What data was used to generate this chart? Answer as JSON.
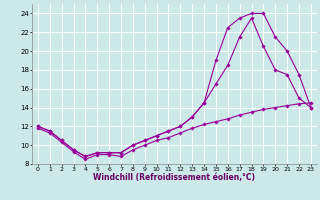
{
  "xlabel": "Windchill (Refroidissement éolien,°C)",
  "bg_color": "#cce8e8",
  "grid_color": "#b0d0d0",
  "line_color": "#990099",
  "xlim": [
    -0.5,
    23.5
  ],
  "ylim": [
    8,
    25
  ],
  "xticks": [
    0,
    1,
    2,
    3,
    4,
    5,
    6,
    7,
    8,
    9,
    10,
    11,
    12,
    13,
    14,
    15,
    16,
    17,
    18,
    19,
    20,
    21,
    22,
    23
  ],
  "yticks": [
    8,
    10,
    12,
    14,
    16,
    18,
    20,
    22,
    24
  ],
  "line1_x": [
    0,
    1,
    2,
    3,
    4,
    5,
    6,
    7,
    8,
    9,
    10,
    11,
    12,
    13,
    14,
    15,
    16,
    17,
    18,
    19,
    20,
    21,
    22,
    23
  ],
  "line1_y": [
    12.0,
    11.5,
    10.5,
    9.5,
    8.8,
    9.2,
    9.2,
    9.2,
    10.0,
    10.5,
    11.0,
    11.5,
    12.0,
    13.0,
    14.5,
    19.0,
    22.5,
    23.5,
    24.0,
    24.0,
    21.5,
    20.0,
    17.5,
    14.0
  ],
  "line2_x": [
    0,
    1,
    2,
    3,
    4,
    5,
    6,
    7,
    8,
    9,
    10,
    11,
    12,
    13,
    14,
    15,
    16,
    17,
    18,
    19,
    20,
    21,
    22,
    23
  ],
  "line2_y": [
    12.0,
    11.5,
    10.5,
    9.5,
    8.8,
    9.2,
    9.2,
    9.2,
    10.0,
    10.5,
    11.0,
    11.5,
    12.0,
    13.0,
    14.5,
    16.5,
    18.5,
    21.5,
    23.5,
    20.5,
    18.0,
    17.5,
    15.0,
    14.0
  ],
  "line3_x": [
    0,
    1,
    2,
    3,
    4,
    5,
    6,
    7,
    8,
    9,
    10,
    11,
    12,
    13,
    14,
    15,
    16,
    17,
    18,
    19,
    20,
    21,
    22,
    23
  ],
  "line3_y": [
    11.8,
    11.3,
    10.3,
    9.3,
    8.5,
    9.0,
    9.0,
    8.8,
    9.5,
    10.0,
    10.5,
    10.8,
    11.3,
    11.8,
    12.2,
    12.5,
    12.8,
    13.2,
    13.5,
    13.8,
    14.0,
    14.2,
    14.4,
    14.5
  ]
}
